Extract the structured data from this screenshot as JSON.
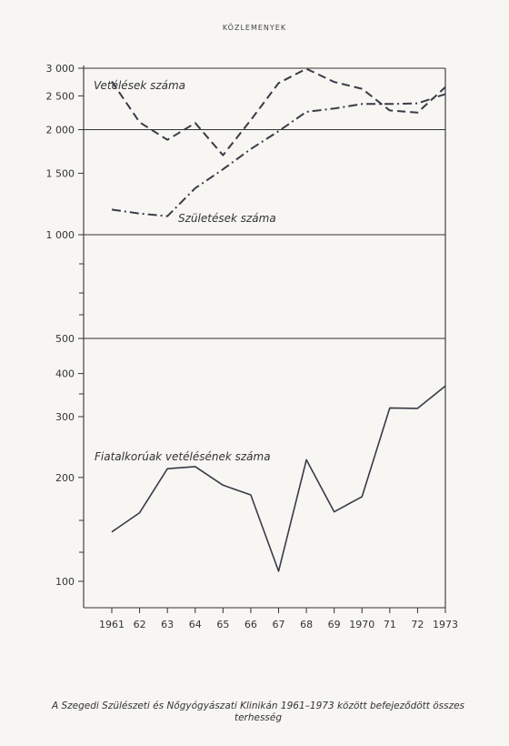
{
  "header": {
    "title": "KÖZLEMENYEK"
  },
  "caption": {
    "line1": "A Szegedi Szülészeti és Nőgyógyászati Klinikán 1961–1973 között befejeződött összes",
    "line2": "terhesség"
  },
  "chart_data": {
    "type": "line",
    "x": [
      "1961",
      "62",
      "63",
      "64",
      "65",
      "66",
      "67",
      "68",
      "69",
      "1970",
      "71",
      "72",
      "1973"
    ],
    "y_scale": "log",
    "upper_ticks": [
      "3 000",
      "2 500",
      "2 000",
      "1 500",
      "1 000",
      "500"
    ],
    "lower_ticks": [
      "400",
      "300",
      "200",
      "100"
    ],
    "series": [
      {
        "name": "Vetélések száma",
        "style": "dashed",
        "values": [
          2750,
          2100,
          1870,
          2090,
          1690,
          2130,
          2720,
          2990,
          2740,
          2620,
          2270,
          2240,
          2650
        ]
      },
      {
        "name": "Születések száma",
        "style": "dash-dot",
        "values": [
          1180,
          1150,
          1130,
          1360,
          1540,
          1760,
          1980,
          2250,
          2300,
          2370,
          2370,
          2380,
          2530
        ]
      },
      {
        "name": "Fiatalkorúak vetélésének száma",
        "style": "solid",
        "values": [
          139,
          158,
          212,
          215,
          190,
          178,
          107,
          225,
          159,
          176,
          318,
          317,
          368
        ]
      }
    ]
  }
}
